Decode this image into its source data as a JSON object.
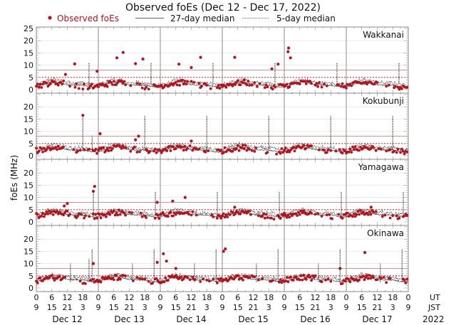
{
  "chart_data": {
    "type": "scatter",
    "title": "Observed foEs (Dec 12 - Dec 17, 2022)",
    "ylabel": "foEs (MHz)",
    "ylim": [
      0,
      25
    ],
    "yticks_top": [
      0,
      5,
      10,
      15,
      20,
      25
    ],
    "yticks": [
      0,
      5,
      10,
      15,
      20
    ],
    "legend": {
      "observed": "Observed foEs",
      "median27": "27-day median",
      "median5": "5-day median"
    },
    "colors": {
      "observed": "#b5121b",
      "median": "#111111",
      "threshold": "#b94a4a",
      "grid": "#999999"
    },
    "x_ut_ticks": [
      "0",
      "6",
      "12",
      "18",
      "0",
      "6",
      "12",
      "18",
      "0",
      "6",
      "12",
      "18",
      "0",
      "6",
      "12",
      "18",
      "0",
      "6",
      "12",
      "18",
      "0",
      "6",
      "12",
      "18",
      "0"
    ],
    "x_jst_ticks": [
      "9",
      "15",
      "21",
      "3",
      "9",
      "15",
      "21",
      "3",
      "9",
      "15",
      "21",
      "3",
      "9",
      "15",
      "21",
      "3",
      "9",
      "15",
      "21",
      "3",
      "9",
      "15",
      "21",
      "3",
      "9"
    ],
    "x_ut_label": "UT",
    "x_jst_label": "JST",
    "days": [
      "Dec 12",
      "Dec 13",
      "Dec 14",
      "Dec 15",
      "Dec 16",
      "Dec 17"
    ],
    "year": "2022",
    "threshold_lines_mhz": [
      5,
      8
    ],
    "stations": [
      {
        "name": "Wakkanai",
        "baseline": 2.0,
        "observed_peaks": [
          [
            0.47,
            6.2
          ],
          [
            0.62,
            10.5
          ],
          [
            0.98,
            7.5
          ],
          [
            1.6,
            10.6
          ],
          [
            1.72,
            12.5
          ],
          [
            1.4,
            15.2
          ],
          [
            1.3,
            13.0
          ],
          [
            2.3,
            10.4
          ],
          [
            2.5,
            9.0
          ],
          [
            2.65,
            13.2
          ],
          [
            3.8,
            8.5
          ],
          [
            3.9,
            10.4
          ],
          [
            4.06,
            15.5
          ],
          [
            4.07,
            17.0
          ],
          [
            4.1,
            13.0
          ],
          [
            3.2,
            13.2
          ]
        ],
        "median5_spikes": [
          [
            0.85,
            11.0
          ],
          [
            1.85,
            11.0
          ],
          [
            2.85,
            11.0
          ],
          [
            3.85,
            11.0
          ],
          [
            4.85,
            11.0
          ],
          [
            5.85,
            11.0
          ]
        ]
      },
      {
        "name": "Kokubunji",
        "baseline": 2.5,
        "observed_peaks": [
          [
            0.75,
            16.5
          ],
          [
            1.03,
            9.0
          ],
          [
            1.6,
            6.5
          ],
          [
            1.65,
            8.0
          ],
          [
            2.5,
            6.0
          ]
        ],
        "median5_spikes": [
          [
            0.75,
            16.5
          ],
          [
            0.9,
            8.0
          ],
          [
            1.75,
            16.5
          ],
          [
            2.75,
            16.5
          ],
          [
            3.75,
            16.5
          ],
          [
            4.75,
            16.5
          ],
          [
            5.75,
            16.5
          ]
        ]
      },
      {
        "name": "Yamagawa",
        "baseline": 3.0,
        "observed_peaks": [
          [
            0.45,
            6.5
          ],
          [
            0.5,
            7.5
          ],
          [
            0.92,
            12.5
          ],
          [
            0.94,
            14.5
          ],
          [
            1.95,
            8.0
          ],
          [
            2.2,
            8.5
          ],
          [
            2.4,
            10.0
          ],
          [
            3.2,
            6.0
          ],
          [
            5.4,
            6.0
          ]
        ],
        "median5_spikes": [
          [
            0.92,
            12.5
          ],
          [
            1.92,
            12.5
          ],
          [
            2.92,
            12.5
          ],
          [
            3.92,
            12.5
          ],
          [
            4.92,
            12.5
          ],
          [
            5.92,
            12.5
          ]
        ]
      },
      {
        "name": "Okinawa",
        "baseline": 3.5,
        "observed_peaks": [
          [
            0.92,
            10.0
          ],
          [
            1.95,
            10.5
          ],
          [
            2.05,
            14.0
          ],
          [
            2.1,
            11.0
          ],
          [
            2.25,
            8.0
          ],
          [
            3.02,
            15.0
          ],
          [
            3.05,
            16.0
          ],
          [
            5.3,
            14.5
          ],
          [
            4.9,
            8.0
          ]
        ],
        "median5_spikes": [
          [
            0.55,
            10.0
          ],
          [
            0.85,
            12.0
          ],
          [
            0.9,
            16.0
          ],
          [
            1.55,
            10.0
          ],
          [
            1.9,
            16.0
          ],
          [
            2.55,
            10.0
          ],
          [
            2.9,
            16.0
          ],
          [
            3.55,
            10.0
          ],
          [
            3.9,
            16.0
          ],
          [
            4.55,
            10.0
          ],
          [
            4.9,
            16.0
          ],
          [
            5.55,
            10.0
          ],
          [
            5.9,
            16.0
          ]
        ]
      }
    ]
  }
}
